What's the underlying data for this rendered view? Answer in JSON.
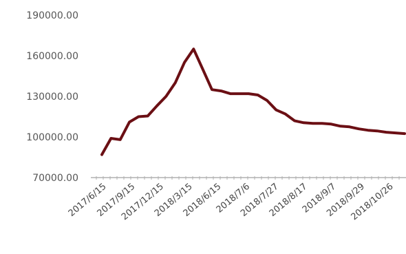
{
  "chart_data": {
    "type": "line",
    "title": "",
    "xlabel": "",
    "ylabel": "",
    "ylim": [
      70000,
      190000
    ],
    "yticks": [
      "70000.00",
      "100000.00",
      "130000.00",
      "160000.00",
      "190000.00"
    ],
    "xtick_labels": [
      "2017/6/15",
      "2017/9/15",
      "2017/12/15",
      "2018/3/15",
      "2018/6/15",
      "2018/7/6",
      "2018/7/27",
      "2018/8/17",
      "2018/9/7",
      "2018/9/29",
      "2018/10/26"
    ],
    "grid": false,
    "legend": "none",
    "colors": {
      "line": "#6b0f14",
      "axis": "#b0b0b0",
      "tick_text": "#555555"
    },
    "series": [
      {
        "values": [
          87000,
          99000,
          98000,
          111000,
          115000,
          115500,
          123000,
          130000,
          140000,
          155000,
          165000,
          150000,
          135000,
          134000,
          132000,
          132000,
          132000,
          131000,
          127000,
          120000,
          117000,
          112000,
          110500,
          110000,
          110000,
          109500,
          108000,
          107500,
          106000,
          105000,
          104500,
          103500,
          103000,
          102500
        ]
      }
    ]
  }
}
